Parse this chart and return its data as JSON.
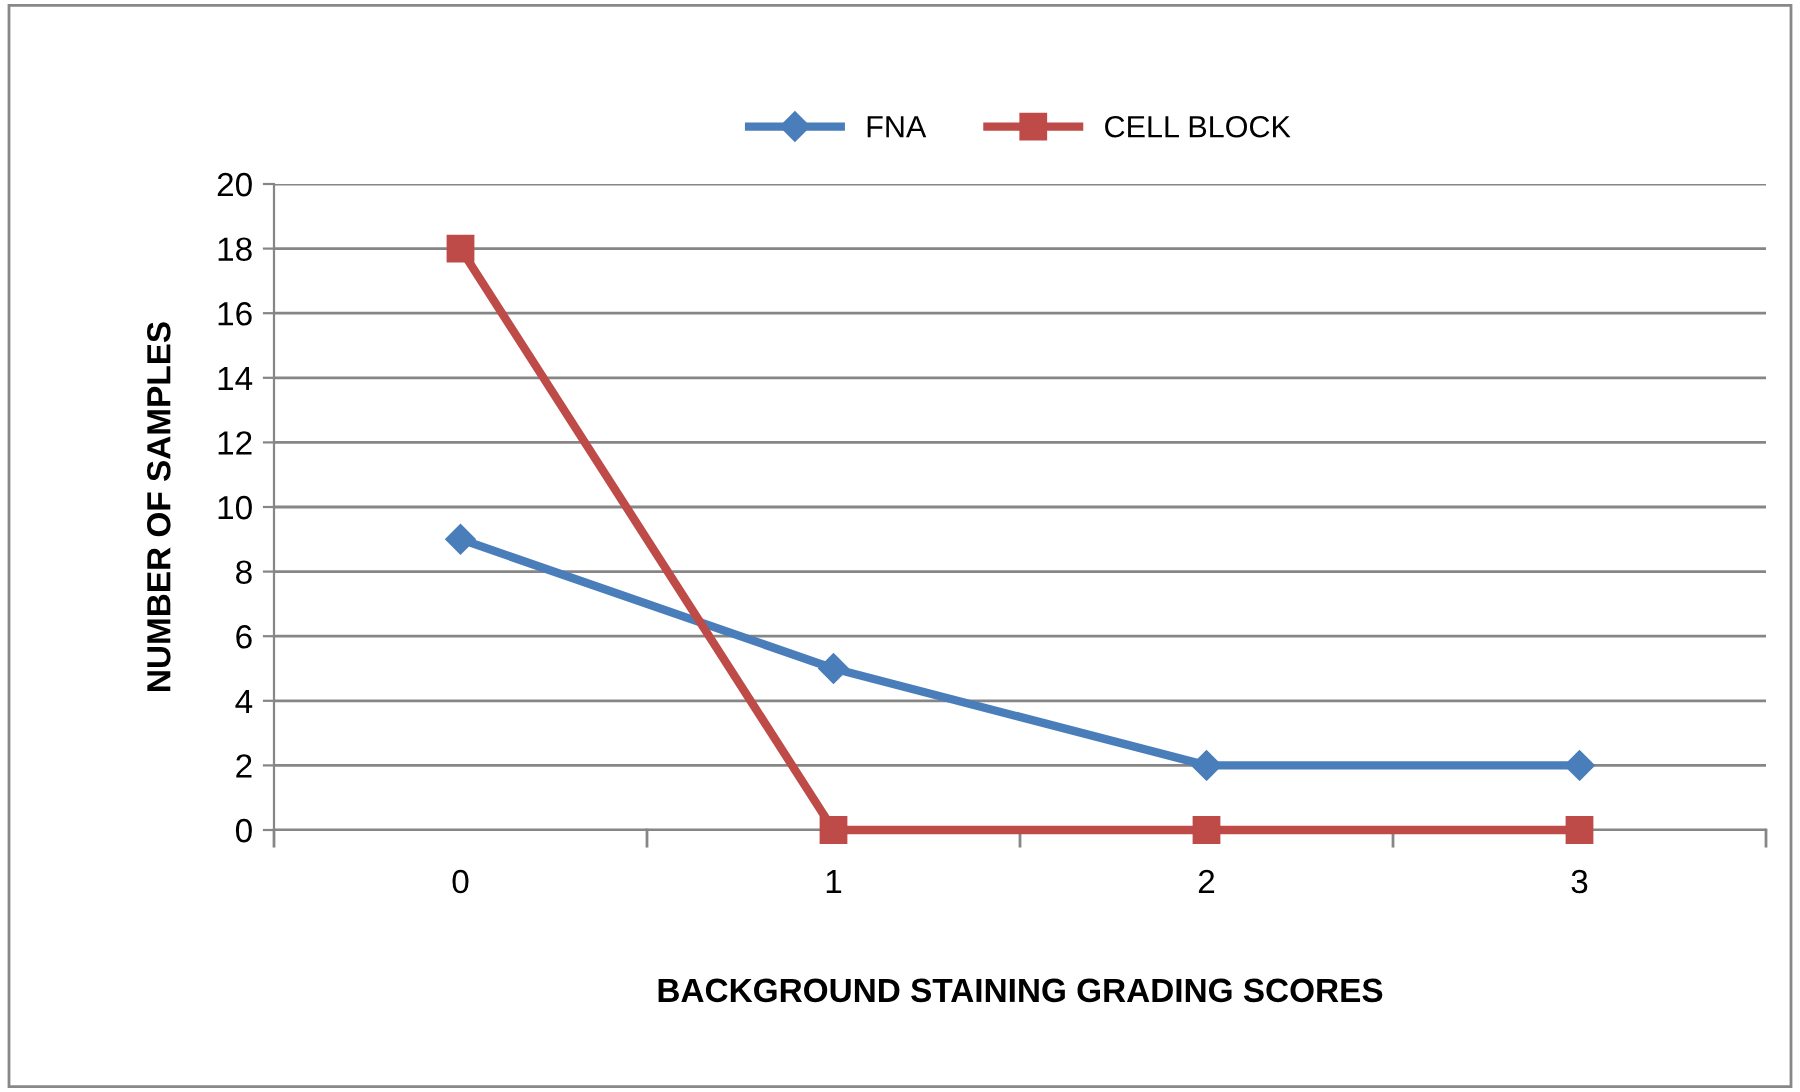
{
  "chart_data": {
    "type": "line",
    "xlabel": "BACKGROUND STAINING GRADING SCORES",
    "ylabel": "NUMBER OF SAMPLES",
    "categories": [
      "0",
      "1",
      "2",
      "3"
    ],
    "series": [
      {
        "name": "FNA",
        "color": "#4a7ebb",
        "marker": "diamond",
        "values": [
          9,
          5,
          2,
          2
        ]
      },
      {
        "name": "CELL BLOCK",
        "color": "#be4b48",
        "marker": "square",
        "values": [
          18,
          0,
          0,
          0
        ]
      }
    ],
    "ylim": [
      0,
      20
    ],
    "yticks": [
      0,
      2,
      4,
      6,
      8,
      10,
      12,
      14,
      16,
      18,
      20
    ],
    "grid": "y",
    "legend": "top",
    "line_style": "solid"
  }
}
